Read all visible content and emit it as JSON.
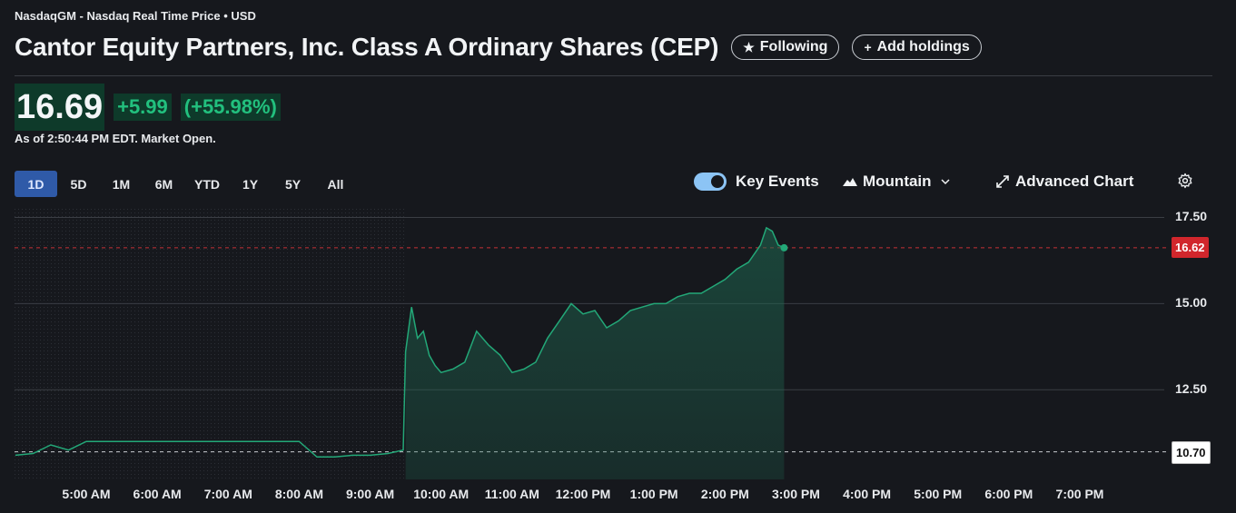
{
  "header": {
    "exchange": "NasdaqGM - Nasdaq Real Time Price • USD",
    "title": "Cantor Equity Partners, Inc. Class A Ordinary Shares (CEP)",
    "following_label": "Following",
    "add_holdings_label": "Add holdings"
  },
  "quote": {
    "price": "16.69",
    "change": "+5.99",
    "change_pct": "(+55.98%)",
    "as_of": "As of 2:50:44 PM EDT. Market Open.",
    "up_color": "#22c07e"
  },
  "ranges": [
    "1D",
    "5D",
    "1M",
    "6M",
    "YTD",
    "1Y",
    "5Y",
    "All"
  ],
  "active_range": "1D",
  "controls": {
    "key_events_label": "Key Events",
    "key_events_on": true,
    "chart_type_label": "Mountain",
    "advanced_chart_label": "Advanced Chart"
  },
  "chart_data": {
    "type": "area",
    "title": "",
    "xlabel": "",
    "ylabel": "",
    "x_ticks": [
      "5:00 AM",
      "6:00 AM",
      "7:00 AM",
      "8:00 AM",
      "9:00 AM",
      "10:00 AM",
      "11:00 AM",
      "12:00 PM",
      "1:00 PM",
      "2:00 PM",
      "3:00 PM",
      "4:00 PM",
      "5:00 PM",
      "6:00 PM",
      "7:00 PM"
    ],
    "y_ticks": [
      12.5,
      15.0,
      17.5
    ],
    "y_tick_labels": [
      "12.50",
      "15.00",
      "17.50"
    ],
    "ylim": [
      9.9,
      17.75
    ],
    "current_price_tag": "16.62",
    "current_price": 16.62,
    "previous_close_tag": "10.70",
    "previous_close": 10.7,
    "premarket_end": "9:30 AM",
    "grid": true,
    "series": [
      {
        "x": [
          "4:00 AM",
          "4:15 AM",
          "4:30 AM",
          "4:45 AM",
          "5:00 AM",
          "5:30 AM",
          "6:00 AM",
          "6:30 AM",
          "7:00 AM",
          "7:30 AM",
          "8:00 AM",
          "8:15 AM",
          "8:30 AM",
          "8:45 AM",
          "9:00 AM",
          "9:15 AM",
          "9:28 AM",
          "9:30 AM",
          "9:35 AM",
          "9:40 AM",
          "9:45 AM",
          "9:50 AM",
          "9:55 AM",
          "10:00 AM",
          "10:10 AM",
          "10:20 AM",
          "10:30 AM",
          "10:40 AM",
          "10:50 AM",
          "11:00 AM",
          "11:10 AM",
          "11:20 AM",
          "11:30 AM",
          "11:40 AM",
          "11:50 AM",
          "12:00 PM",
          "12:10 PM",
          "12:20 PM",
          "12:30 PM",
          "12:40 PM",
          "12:50 PM",
          "1:00 PM",
          "1:10 PM",
          "1:20 PM",
          "1:30 PM",
          "1:40 PM",
          "1:50 PM",
          "2:00 PM",
          "2:10 PM",
          "2:20 PM",
          "2:30 PM",
          "2:35 PM",
          "2:40 PM",
          "2:45 PM",
          "2:50 PM"
        ],
        "values": [
          10.6,
          10.65,
          10.9,
          10.75,
          11.0,
          11.0,
          11.0,
          11.0,
          11.0,
          11.0,
          11.0,
          10.55,
          10.55,
          10.6,
          10.6,
          10.65,
          10.75,
          13.6,
          14.9,
          14.0,
          14.2,
          13.5,
          13.2,
          13.0,
          13.1,
          13.3,
          14.2,
          13.8,
          13.5,
          13.0,
          13.1,
          13.3,
          14.0,
          14.5,
          15.0,
          14.7,
          14.8,
          14.3,
          14.5,
          14.8,
          14.9,
          15.0,
          15.0,
          15.2,
          15.3,
          15.3,
          15.5,
          15.7,
          16.0,
          16.2,
          16.7,
          17.2,
          17.1,
          16.7,
          16.62
        ]
      }
    ]
  }
}
